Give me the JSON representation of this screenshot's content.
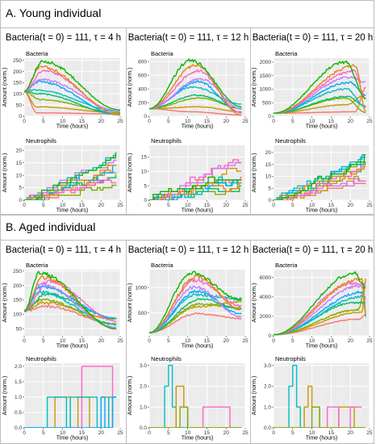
{
  "sections": [
    {
      "title": "A. Young individual",
      "columns": [
        {
          "title": "Bacteria(t = 0) = 111, τ = 4 h"
        },
        {
          "title": "Bacteria(t = 0) = 111, τ = 12 h"
        },
        {
          "title": "Bacteria(t = 0) = 111, τ = 20 h"
        }
      ]
    },
    {
      "title": "B. Aged individual",
      "columns": [
        {
          "title": "Bacteria(t = 0) = 111, τ = 4 h"
        },
        {
          "title": "Bacteria(t = 0) = 111, τ = 12 h"
        },
        {
          "title": "Bacteria(t = 0) = 111, τ = 20 h"
        }
      ]
    }
  ],
  "series_colors": [
    "#f8766d",
    "#cd9600",
    "#7cae00",
    "#00be67",
    "#00bfc4",
    "#00a9ff",
    "#c77cff",
    "#ff61cc",
    "#e68613",
    "#0cb702"
  ],
  "chart_data": [
    {
      "id": "A-bact-4",
      "type": "line",
      "title": "Bacteria",
      "xlabel": "Time (hours)",
      "ylabel": "Amount (norm.)",
      "xlim": [
        0,
        25
      ],
      "ylim": [
        0,
        260
      ],
      "xticks": [
        0,
        5,
        10,
        15,
        20,
        25
      ],
      "yticks": [
        0,
        50,
        100,
        150,
        200,
        250
      ],
      "gen": {
        "kind": "bact",
        "n": 10,
        "seed": 11,
        "base": 111,
        "lo": 20,
        "hi": 250,
        "tpeak": 4,
        "tend": 25,
        "endlo": 0,
        "endhi": 30
      }
    },
    {
      "id": "A-neut-4",
      "type": "line",
      "title": "Neutrophils",
      "xlabel": "Time (hours)",
      "ylabel": "Amount (norm.)",
      "xlim": [
        0,
        25
      ],
      "ylim": [
        0,
        22
      ],
      "xticks": [
        0,
        5,
        10,
        15,
        20,
        25
      ],
      "yticks": [
        0,
        5,
        10,
        15,
        20
      ],
      "gen": {
        "kind": "neut",
        "n": 10,
        "seed": 21,
        "lo": 5,
        "hi": 20,
        "tend": 24
      }
    },
    {
      "id": "A-bact-12",
      "type": "line",
      "title": "Bacteria",
      "xlabel": "Time (hours)",
      "ylabel": "Amount (norm.)",
      "xlim": [
        0,
        25
      ],
      "ylim": [
        0,
        850
      ],
      "xticks": [
        0,
        5,
        10,
        15,
        20,
        25
      ],
      "yticks": [
        0,
        200,
        400,
        600,
        800
      ],
      "gen": {
        "kind": "bact",
        "n": 10,
        "seed": 31,
        "base": 111,
        "lo": 80,
        "hi": 800,
        "tpeak": 12,
        "tend": 24,
        "endlo": 10,
        "endhi": 180
      }
    },
    {
      "id": "A-neut-12",
      "type": "line",
      "title": "Neutrophils",
      "xlabel": "Time (hours)",
      "ylabel": "Amount (norm.)",
      "xlim": [
        0,
        25
      ],
      "ylim": [
        0,
        19
      ],
      "xticks": [
        0,
        5,
        10,
        15,
        20,
        25
      ],
      "yticks": [
        0,
        5,
        10,
        15
      ],
      "gen": {
        "kind": "neut",
        "n": 10,
        "seed": 41,
        "lo": 3,
        "hi": 18,
        "tend": 24
      }
    },
    {
      "id": "A-bact-20",
      "type": "line",
      "title": "Bacteria",
      "xlabel": "Time (hours)",
      "ylabel": "Amount (norm.)",
      "xlim": [
        0,
        25
      ],
      "ylim": [
        0,
        2150
      ],
      "xticks": [
        0,
        5,
        10,
        15,
        20,
        25
      ],
      "yticks": [
        0,
        500,
        1000,
        1500,
        2000
      ],
      "gen": {
        "kind": "bact",
        "n": 10,
        "seed": 51,
        "base": 111,
        "lo": 200,
        "hi": 2000,
        "tpeak": 20,
        "tend": 24,
        "endlo": 100,
        "endhi": 1400
      }
    },
    {
      "id": "A-neut-20",
      "type": "line",
      "title": "Neutrophils",
      "xlabel": "Time (hours)",
      "ylabel": "Amount (norm.)",
      "xlim": [
        0,
        25
      ],
      "ylim": [
        0,
        23
      ],
      "xticks": [
        0,
        5,
        10,
        15,
        20,
        25
      ],
      "yticks": [
        0,
        5,
        10,
        15,
        20
      ],
      "gen": {
        "kind": "neut",
        "n": 10,
        "seed": 61,
        "lo": 4,
        "hi": 22,
        "tend": 24
      }
    },
    {
      "id": "B-bact-4",
      "type": "line",
      "title": "Bacteria",
      "xlabel": "Time (hours)",
      "ylabel": "Amount (norm.)",
      "xlim": [
        0,
        25
      ],
      "ylim": [
        25,
        255
      ],
      "xticks": [
        0,
        5,
        10,
        15,
        20,
        25
      ],
      "yticks": [
        50,
        100,
        150,
        200,
        250
      ],
      "gen": {
        "kind": "bact",
        "n": 10,
        "seed": 71,
        "base": 111,
        "lo": 130,
        "hi": 245,
        "tpeak": 5,
        "tend": 24,
        "endlo": 45,
        "endhi": 95
      }
    },
    {
      "id": "B-neut-4",
      "type": "line",
      "title": "Neutrophils",
      "xlabel": "Time (hours)",
      "ylabel": "Amount (norm.)",
      "xlim": [
        0,
        25
      ],
      "ylim": [
        0,
        2.1
      ],
      "xticks": [
        0,
        5,
        10,
        15,
        20,
        25
      ],
      "yticks": [
        0.0,
        0.5,
        1.0,
        1.5,
        2.0
      ],
      "series": [
        {
          "color": "#ff61cc",
          "x": [
            0,
            15,
            15,
            23,
            23
          ],
          "y": [
            0,
            0,
            2,
            2,
            0
          ]
        },
        {
          "color": "#cd9600",
          "x": [
            0,
            8,
            8,
            12,
            12,
            14,
            14,
            17,
            17,
            20,
            20,
            22,
            22,
            23,
            23
          ],
          "y": [
            0,
            0,
            1,
            1,
            0,
            0,
            1,
            1,
            0,
            0,
            1,
            1,
            0,
            0,
            1
          ]
        },
        {
          "color": "#00bfc4",
          "x": [
            0,
            6,
            6,
            11,
            11,
            12,
            12,
            19,
            19,
            22,
            22,
            24
          ],
          "y": [
            0,
            0,
            1,
            1,
            0,
            0,
            1,
            1,
            0,
            0,
            1,
            1
          ]
        },
        {
          "color": "#00a9ff",
          "x": [
            0,
            20,
            20,
            21,
            21,
            23,
            23,
            24
          ],
          "y": [
            0,
            0,
            1,
            1,
            0,
            0,
            1,
            1
          ]
        }
      ]
    },
    {
      "id": "B-bact-12",
      "type": "line",
      "title": "Bacteria",
      "xlabel": "Time (hours)",
      "ylabel": "Amount (norm.)",
      "xlim": [
        0,
        25
      ],
      "ylim": [
        50,
        1350
      ],
      "xticks": [
        0,
        5,
        10,
        15,
        20,
        25
      ],
      "yticks": [
        500,
        1000
      ],
      "gen": {
        "kind": "bact",
        "n": 10,
        "seed": 81,
        "base": 111,
        "lo": 500,
        "hi": 1300,
        "tpeak": 12,
        "tend": 24,
        "endlo": 230,
        "endhi": 800
      }
    },
    {
      "id": "B-neut-12",
      "type": "line",
      "title": "Neutrophils",
      "xlabel": "Time (hours)",
      "ylabel": "Amount (norm.)",
      "xlim": [
        0,
        25
      ],
      "ylim": [
        0,
        3.1
      ],
      "xticks": [
        0,
        5,
        10,
        15,
        20,
        25
      ],
      "yticks": [
        0,
        1,
        2,
        3
      ],
      "series": [
        {
          "color": "#ff61cc",
          "x": [
            0,
            14,
            14,
            21,
            21,
            24
          ],
          "y": [
            0,
            0,
            1,
            1,
            0,
            0
          ]
        },
        {
          "color": "#00bfc4",
          "x": [
            0,
            4,
            4,
            5,
            5,
            6,
            6,
            7,
            7,
            24
          ],
          "y": [
            0,
            0,
            2,
            2,
            3,
            3,
            1,
            1,
            0,
            0
          ]
        },
        {
          "color": "#cd9600",
          "x": [
            0,
            7,
            7,
            9,
            9,
            10,
            10,
            24
          ],
          "y": [
            0,
            0,
            2,
            2,
            1,
            1,
            0,
            0
          ]
        },
        {
          "color": "#7cae00",
          "x": [
            0,
            8,
            8,
            10,
            10,
            24
          ],
          "y": [
            0,
            0,
            1,
            1,
            0,
            0
          ]
        }
      ]
    },
    {
      "id": "B-bact-20",
      "type": "line",
      "title": "Bacteria",
      "xlabel": "Time (hours)",
      "ylabel": "Amount (norm.)",
      "xlim": [
        0,
        25
      ],
      "ylim": [
        0,
        6800
      ],
      "xticks": [
        0,
        5,
        10,
        15,
        20,
        25
      ],
      "yticks": [
        0,
        2000,
        4000,
        6000
      ],
      "gen": {
        "kind": "bact",
        "n": 10,
        "seed": 91,
        "base": 111,
        "lo": 1800,
        "hi": 6600,
        "tpeak": 22,
        "tend": 24,
        "endlo": 1600,
        "endhi": 6000
      }
    },
    {
      "id": "B-neut-20",
      "type": "line",
      "title": "Neutrophils",
      "xlabel": "Time (hours)",
      "ylabel": "Amount (norm.)",
      "xlim": [
        0,
        25
      ],
      "ylim": [
        0,
        3.1
      ],
      "xticks": [
        0,
        5,
        10,
        15,
        20,
        25
      ],
      "yticks": [
        0,
        1,
        2,
        3
      ],
      "series": [
        {
          "color": "#00bfc4",
          "x": [
            0,
            4,
            4,
            5,
            5,
            6,
            6,
            7,
            7,
            24
          ],
          "y": [
            0,
            0,
            2,
            2,
            3,
            3,
            1,
            1,
            0,
            0
          ]
        },
        {
          "color": "#cd9600",
          "x": [
            0,
            8,
            8,
            9,
            9,
            10,
            10,
            12,
            12,
            17,
            17,
            21,
            21,
            24
          ],
          "y": [
            0,
            0,
            1,
            1,
            2,
            2,
            1,
            1,
            0,
            0,
            1,
            1,
            0,
            0
          ]
        },
        {
          "color": "#ff61cc",
          "x": [
            0,
            14,
            14,
            17,
            17,
            20,
            20,
            23
          ],
          "y": [
            0,
            0,
            1,
            1,
            0,
            0,
            1,
            1
          ]
        },
        {
          "color": "#7cae00",
          "x": [
            0,
            10,
            10,
            12,
            12,
            24
          ],
          "y": [
            0,
            0,
            1,
            1,
            0,
            0
          ]
        }
      ]
    }
  ]
}
